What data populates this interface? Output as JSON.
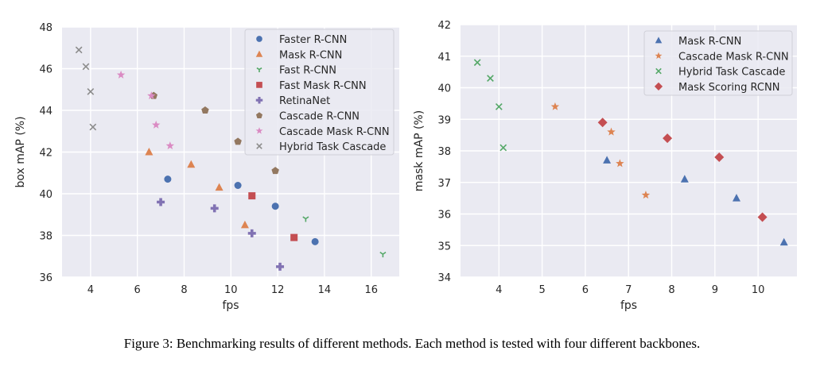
{
  "caption": "Figure 3: Benchmarking results of different methods. Each method is tested with four different backbones.",
  "chart_data": [
    {
      "type": "scatter",
      "title": "",
      "xlabel": "fps",
      "ylabel": "box mAP (%)",
      "xlim": [
        2.78,
        17.2
      ],
      "ylim": [
        36,
        48
      ],
      "xticks": [
        4,
        6,
        8,
        10,
        12,
        14,
        16
      ],
      "yticks": [
        36,
        38,
        40,
        42,
        44,
        46,
        48
      ],
      "grid": true,
      "legend_position": "top-right",
      "series": [
        {
          "name": "Faster R-CNN",
          "marker": "circle",
          "color": "#4c72b0",
          "points": [
            [
              7.3,
              40.7
            ],
            [
              10.3,
              40.4
            ],
            [
              11.9,
              39.4
            ],
            [
              13.6,
              37.7
            ]
          ]
        },
        {
          "name": "Mask R-CNN",
          "marker": "triangle",
          "color": "#dd8452",
          "points": [
            [
              6.5,
              42.0
            ],
            [
              8.3,
              41.4
            ],
            [
              9.5,
              40.3
            ],
            [
              10.6,
              38.5
            ]
          ]
        },
        {
          "name": "Fast R-CNN",
          "marker": "tri-down",
          "color": "#55a868",
          "points": [
            [
              13.2,
              38.8
            ],
            [
              16.5,
              37.1
            ]
          ]
        },
        {
          "name": "Fast Mask R-CNN",
          "marker": "square",
          "color": "#c44e52",
          "points": [
            [
              10.9,
              39.9
            ],
            [
              12.7,
              37.9
            ]
          ]
        },
        {
          "name": "RetinaNet",
          "marker": "plus",
          "color": "#8172b3",
          "points": [
            [
              7.0,
              39.6
            ],
            [
              9.3,
              39.3
            ],
            [
              10.9,
              38.1
            ],
            [
              12.1,
              36.5
            ]
          ]
        },
        {
          "name": "Cascade R-CNN",
          "marker": "pentagon",
          "color": "#937860",
          "points": [
            [
              6.7,
              44.7
            ],
            [
              8.9,
              44.0
            ],
            [
              10.3,
              42.5
            ],
            [
              11.9,
              41.1
            ]
          ]
        },
        {
          "name": "Cascade Mask R-CNN",
          "marker": "star",
          "color": "#da8bc3",
          "points": [
            [
              5.3,
              45.7
            ],
            [
              6.6,
              44.7
            ],
            [
              6.8,
              43.3
            ],
            [
              7.4,
              42.3
            ]
          ]
        },
        {
          "name": "Hybrid Task Cascade",
          "marker": "x",
          "color": "#8c8c8c",
          "points": [
            [
              3.5,
              46.9
            ],
            [
              3.8,
              46.1
            ],
            [
              4.0,
              44.9
            ],
            [
              4.1,
              43.2
            ]
          ]
        }
      ]
    },
    {
      "type": "scatter",
      "title": "",
      "xlabel": "fps",
      "ylabel": "mask mAP (%)",
      "xlim": [
        3.11,
        10.9
      ],
      "ylim": [
        34,
        42
      ],
      "xticks": [
        4,
        5,
        6,
        7,
        8,
        9,
        10
      ],
      "yticks": [
        34,
        35,
        36,
        37,
        38,
        39,
        40,
        41,
        42
      ],
      "grid": true,
      "legend_position": "top-right",
      "series": [
        {
          "name": "Mask R-CNN",
          "marker": "triangle",
          "color": "#4c72b0",
          "points": [
            [
              6.5,
              37.7
            ],
            [
              8.3,
              37.1
            ],
            [
              9.5,
              36.5
            ],
            [
              10.6,
              35.1
            ]
          ]
        },
        {
          "name": "Cascade Mask R-CNN",
          "marker": "star",
          "color": "#dd8452",
          "points": [
            [
              5.3,
              39.4
            ],
            [
              6.6,
              38.6
            ],
            [
              6.8,
              37.6
            ],
            [
              7.4,
              36.6
            ]
          ]
        },
        {
          "name": "Hybrid Task Cascade",
          "marker": "x",
          "color": "#55a868",
          "points": [
            [
              3.5,
              40.8
            ],
            [
              3.8,
              40.3
            ],
            [
              4.0,
              39.4
            ],
            [
              4.1,
              38.1
            ]
          ]
        },
        {
          "name": "Mask Scoring RCNN",
          "marker": "diamond",
          "color": "#c44e52",
          "points": [
            [
              6.4,
              38.9
            ],
            [
              7.9,
              38.4
            ],
            [
              9.1,
              37.8
            ],
            [
              10.1,
              35.9
            ]
          ]
        }
      ]
    }
  ]
}
